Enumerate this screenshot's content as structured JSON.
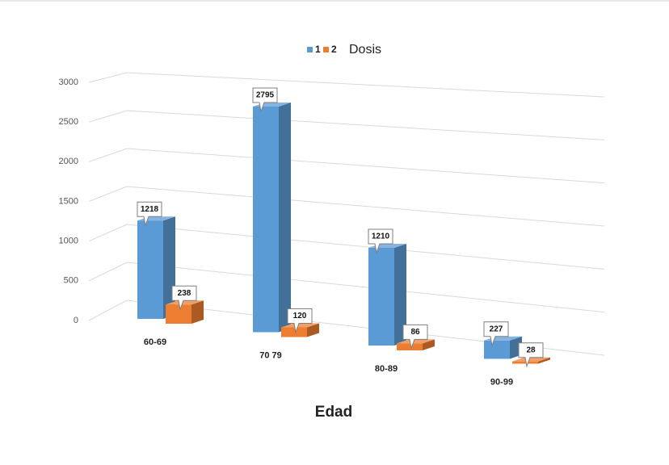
{
  "chart_data": {
    "type": "bar3d",
    "legend_title": "Dosis",
    "x_label": "Edad",
    "categories": [
      "60-69",
      "70 79",
      "80-89",
      "90-99"
    ],
    "series": [
      {
        "name": "1",
        "color": "#5b9bd5",
        "values": [
          1218,
          2795,
          1210,
          227
        ]
      },
      {
        "name": "2",
        "color": "#ed7d31",
        "values": [
          238,
          120,
          86,
          28
        ]
      }
    ],
    "ylim": [
      0,
      3000
    ],
    "yticks": [
      0,
      500,
      1000,
      1500,
      2000,
      2500,
      3000
    ],
    "grid": true,
    "data_labels": true
  }
}
